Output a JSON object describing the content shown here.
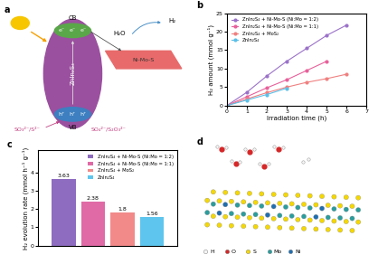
{
  "chart_data": [
    {
      "type": "line",
      "panel_label": "b",
      "x_label": "Irradiation time (h)",
      "y_label": "H₂ amount (mmol g⁻¹)",
      "xlim": [
        0,
        7
      ],
      "xticks": [
        0,
        1,
        2,
        3,
        4,
        5,
        6,
        7
      ],
      "ylim": [
        0,
        25
      ],
      "yticks": [
        0,
        5,
        10,
        15,
        20,
        25
      ],
      "legend": "upper left",
      "series": [
        {
          "name": "ZnIn₂S₄ + Ni-Mo-S (Ni:Mo = 1:2)",
          "color": "#9b72c9",
          "marker": "o",
          "x": [
            0,
            1,
            2,
            3,
            4,
            5,
            6
          ],
          "values": [
            0,
            3.6,
            8.0,
            12.0,
            15.5,
            19.0,
            21.8
          ]
        },
        {
          "name": "ZnIn₂S₄ + Ni-Mo-S (Ni:Mo = 1:1)",
          "color": "#e8609b",
          "marker": "o",
          "x": [
            0,
            1,
            2,
            3,
            4,
            5
          ],
          "values": [
            0,
            2.4,
            4.8,
            7.0,
            9.5,
            12.0
          ]
        },
        {
          "name": "ZnIn₂S₄ + MoS₂",
          "color": "#f08080",
          "marker": "o",
          "x": [
            0,
            1,
            2,
            3,
            4,
            5,
            6
          ],
          "values": [
            0,
            1.8,
            3.5,
            5.0,
            6.3,
            7.3,
            8.5
          ]
        },
        {
          "name": "ZnIn₂S₄",
          "color": "#5bc0e8",
          "marker": "o",
          "x": [
            0,
            1,
            2,
            3
          ],
          "values": [
            0,
            1.5,
            3.0,
            4.7
          ]
        }
      ]
    },
    {
      "type": "bar",
      "panel_label": "c",
      "y_label": "H₂ evolution rate (mmol h⁻¹ g⁻¹)",
      "categories": [
        null
      ],
      "ylim": [
        0,
        5.2
      ],
      "yticks": [
        0,
        1,
        2,
        3,
        4
      ],
      "legend": "upper right",
      "data_labels": true,
      "tick_labels": "y",
      "series": [
        {
          "name": "ZnIn₂S₄ + Ni-Mo-S (Ni:Mo = 1:2)",
          "color": "#8e6cc0",
          "values": [
            3.63
          ]
        },
        {
          "name": "ZnIn₂S₄ + Ni-Mo-S (Ni:Mo = 1:1)",
          "color": "#e06aa6",
          "values": [
            2.38
          ]
        },
        {
          "name": "ZnIn₂S₄ + MoS₂",
          "color": "#f28a8a",
          "values": [
            1.8
          ]
        },
        {
          "name": "ZnIn₂S₄",
          "color": "#5ec6ee",
          "values": [
            1.56
          ]
        }
      ]
    }
  ],
  "diagram_a": {
    "panel_label": "a",
    "cb": "CB",
    "vb": "VB",
    "electron": "e⁻",
    "hole": "h⁺",
    "catalyst": "ZnIn₂S₄",
    "cocatalyst": "Ni-Mo-S",
    "reactant": "H₂O",
    "product": "H₂",
    "sacrificial_agent": "SO₃²⁻/S²⁻",
    "oxidation_product": "SO₄²⁻/S₂O₃²⁻"
  },
  "diagram_d": {
    "panel_label": "d",
    "legend": [
      "H",
      "O",
      "S",
      "Mo",
      "Ni"
    ]
  }
}
